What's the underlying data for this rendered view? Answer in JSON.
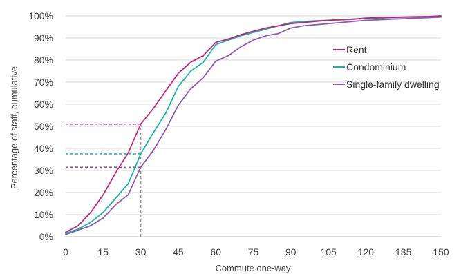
{
  "chart_data": {
    "type": "line",
    "title": "",
    "xlabel": "Commute one-way",
    "ylabel": "Percentage of staff, cumulative",
    "xlim": [
      0,
      150
    ],
    "ylim": [
      0,
      100
    ],
    "x_ticks": [
      0,
      15,
      30,
      45,
      60,
      75,
      90,
      105,
      120,
      135,
      150
    ],
    "y_ticks": [
      0,
      10,
      20,
      30,
      40,
      50,
      60,
      70,
      80,
      90,
      100
    ],
    "y_tick_labels": [
      "0%",
      "10%",
      "20%",
      "30%",
      "40%",
      "50%",
      "60%",
      "70%",
      "80%",
      "90%",
      "100%"
    ],
    "grid": "horizontal",
    "legend_position": "right",
    "x": [
      0,
      5,
      10,
      15,
      20,
      25,
      30,
      35,
      40,
      45,
      50,
      55,
      60,
      65,
      70,
      75,
      80,
      85,
      90,
      95,
      100,
      105,
      110,
      115,
      120,
      125,
      130,
      135,
      140,
      145,
      150
    ],
    "series": [
      {
        "name": "Rent",
        "color": "#c0267a",
        "values": [
          2,
          5,
          11,
          19,
          29,
          38,
          51,
          58,
          66,
          74,
          79,
          82,
          88,
          89.5,
          91.5,
          93,
          94.5,
          95.5,
          96.5,
          97,
          97.5,
          98,
          98.2,
          98.5,
          99,
          99.2,
          99.3,
          99.5,
          99.6,
          99.7,
          100
        ]
      },
      {
        "name": "Condominium",
        "color": "#1ab3a6",
        "values": [
          1.5,
          3.5,
          6.5,
          11,
          17.5,
          24,
          37.5,
          47,
          56,
          68,
          75,
          79,
          87,
          89,
          91,
          92.5,
          94,
          95.5,
          97,
          97.4,
          97.8,
          98,
          98.3,
          98.6,
          98.8,
          99,
          99.2,
          99.4,
          99.5,
          99.6,
          100
        ]
      },
      {
        "name": "Single-family dwelling",
        "color": "#8a5cb8",
        "values": [
          1,
          3,
          5,
          8.5,
          14.5,
          19,
          31.5,
          39,
          48.5,
          59.5,
          67,
          72,
          79.5,
          82,
          86,
          89,
          91,
          92,
          94.5,
          95.5,
          96,
          96.5,
          97,
          97.5,
          98,
          98.2,
          98.5,
          98.7,
          99,
          99.2,
          99.5
        ]
      }
    ],
    "annotations": {
      "vertical_reference_x": 30,
      "vertical_reference_color": "#999999",
      "horizontal_references": [
        {
          "series": "Rent",
          "y": 51,
          "color": "#c0267a"
        },
        {
          "series": "Condominium",
          "y": 37.5,
          "color": "#1ab3a6"
        },
        {
          "series": "Single-family dwelling",
          "y": 31.5,
          "color": "#8a5cb8"
        }
      ]
    }
  }
}
